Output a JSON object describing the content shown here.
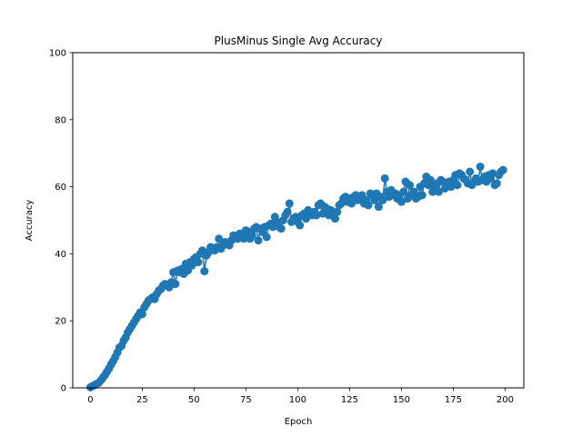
{
  "chart_data": {
    "type": "line",
    "title": "PlusMinus Single Avg Accuracy",
    "xlabel": "Epoch",
    "ylabel": "Accuracy",
    "xlim": [
      -8.5,
      209
    ],
    "ylim": [
      0,
      100
    ],
    "xticks": [
      0,
      25,
      50,
      75,
      100,
      125,
      150,
      175,
      200
    ],
    "yticks": [
      0,
      20,
      40,
      60,
      80,
      100
    ],
    "grid": false,
    "marker": "circle",
    "color": "#1f77b4",
    "series": [
      {
        "x": [
          0,
          1,
          2,
          3,
          4,
          5,
          6,
          7,
          8,
          9,
          10,
          11,
          12,
          13,
          14,
          15,
          16,
          17,
          18,
          19,
          20,
          21,
          22,
          23,
          24,
          25,
          26,
          27,
          28,
          29,
          30,
          31,
          32,
          33,
          34,
          35,
          36,
          37,
          38,
          39,
          40,
          41,
          42,
          43,
          44,
          45,
          46,
          47,
          48,
          49,
          50,
          51,
          52,
          53,
          54,
          55,
          56,
          57,
          58,
          59,
          60,
          61,
          62,
          63,
          64,
          65,
          66,
          67,
          68,
          69,
          70,
          71,
          72,
          73,
          74,
          75,
          76,
          77,
          78,
          79,
          80,
          81,
          82,
          83,
          84,
          85,
          86,
          87,
          88,
          89,
          90,
          91,
          92,
          93,
          94,
          95,
          96,
          97,
          98,
          99,
          100,
          101,
          102,
          103,
          104,
          105,
          106,
          107,
          108,
          109,
          110,
          111,
          112,
          113,
          114,
          115,
          116,
          117,
          118,
          119,
          120,
          121,
          122,
          123,
          124,
          125,
          126,
          127,
          128,
          129,
          130,
          131,
          132,
          133,
          134,
          135,
          136,
          137,
          138,
          139,
          140,
          141,
          142,
          143,
          144,
          145,
          146,
          147,
          148,
          149,
          150,
          151,
          152,
          153,
          154,
          155,
          156,
          157,
          158,
          159,
          160,
          161,
          162,
          163,
          164,
          165,
          166,
          167,
          168,
          169,
          170,
          171,
          172,
          173,
          174,
          175,
          176,
          177,
          178,
          179,
          180,
          181,
          182,
          183,
          184,
          185,
          186,
          187,
          188,
          189,
          190,
          191,
          192,
          193,
          194,
          195,
          196,
          197,
          198,
          199
        ],
        "values": [
          0.2,
          0.5,
          0.8,
          1.2,
          1.5,
          2.2,
          3.0,
          3.8,
          4.8,
          5.8,
          7.0,
          8.0,
          9.2,
          10.5,
          12.0,
          12.5,
          14.0,
          15.0,
          16.5,
          17.5,
          18.5,
          19.5,
          20.5,
          21.5,
          22.5,
          22.0,
          24.0,
          25.0,
          26.0,
          26.5,
          27.0,
          26.5,
          28.0,
          29.0,
          29.5,
          30.5,
          31.0,
          30.5,
          30.0,
          31.5,
          34.5,
          31.0,
          35.0,
          34.5,
          35.5,
          34.0,
          37.0,
          35.0,
          37.5,
          36.5,
          38.5,
          39.0,
          37.5,
          40.0,
          41.0,
          34.8,
          39.5,
          40.5,
          42.0,
          41.5,
          41.0,
          42.0,
          44.5,
          41.5,
          42.5,
          43.5,
          43.0,
          42.5,
          44.0,
          45.5,
          45.0,
          44.5,
          46.0,
          45.5,
          44.5,
          47.0,
          46.5,
          44.5,
          45.5,
          47.5,
          48.0,
          44.0,
          47.5,
          46.5,
          48.0,
          45.0,
          48.5,
          49.0,
          48.0,
          51.0,
          49.5,
          48.0,
          47.5,
          50.0,
          51.5,
          52.5,
          55.0,
          49.5,
          50.5,
          51.0,
          49.5,
          48.5,
          51.5,
          52.0,
          50.5,
          53.0,
          52.5,
          51.5,
          52.5,
          51.5,
          54.5,
          55.0,
          52.0,
          54.0,
          53.5,
          51.5,
          53.0,
          52.5,
          50.5,
          52.5,
          54.5,
          55.0,
          56.5,
          57.0,
          55.5,
          56.5,
          55.0,
          57.0,
          57.5,
          56.0,
          56.5,
          57.5,
          55.0,
          56.0,
          54.5,
          58.0,
          57.5,
          56.0,
          58.0,
          54.0,
          57.0,
          56.0,
          62.5,
          58.5,
          57.0,
          59.0,
          57.5,
          58.0,
          56.5,
          57.5,
          55.5,
          58.5,
          61.5,
          56.5,
          60.5,
          57.5,
          58.5,
          56.5,
          57.0,
          60.0,
          57.5,
          61.0,
          63.0,
          60.5,
          62.0,
          58.5,
          60.5,
          61.0,
          58.5,
          62.0,
          61.5,
          59.5,
          60.5,
          61.5,
          60.0,
          62.0,
          63.5,
          60.5,
          64.0,
          63.5,
          62.5,
          62.0,
          61.0,
          64.5,
          60.5,
          61.5,
          62.5,
          61.5,
          66.0,
          62.0,
          63.0,
          61.5,
          63.5,
          62.5,
          64.0,
          60.5,
          61.0,
          63.5,
          64.5,
          65.0
        ]
      }
    ]
  }
}
